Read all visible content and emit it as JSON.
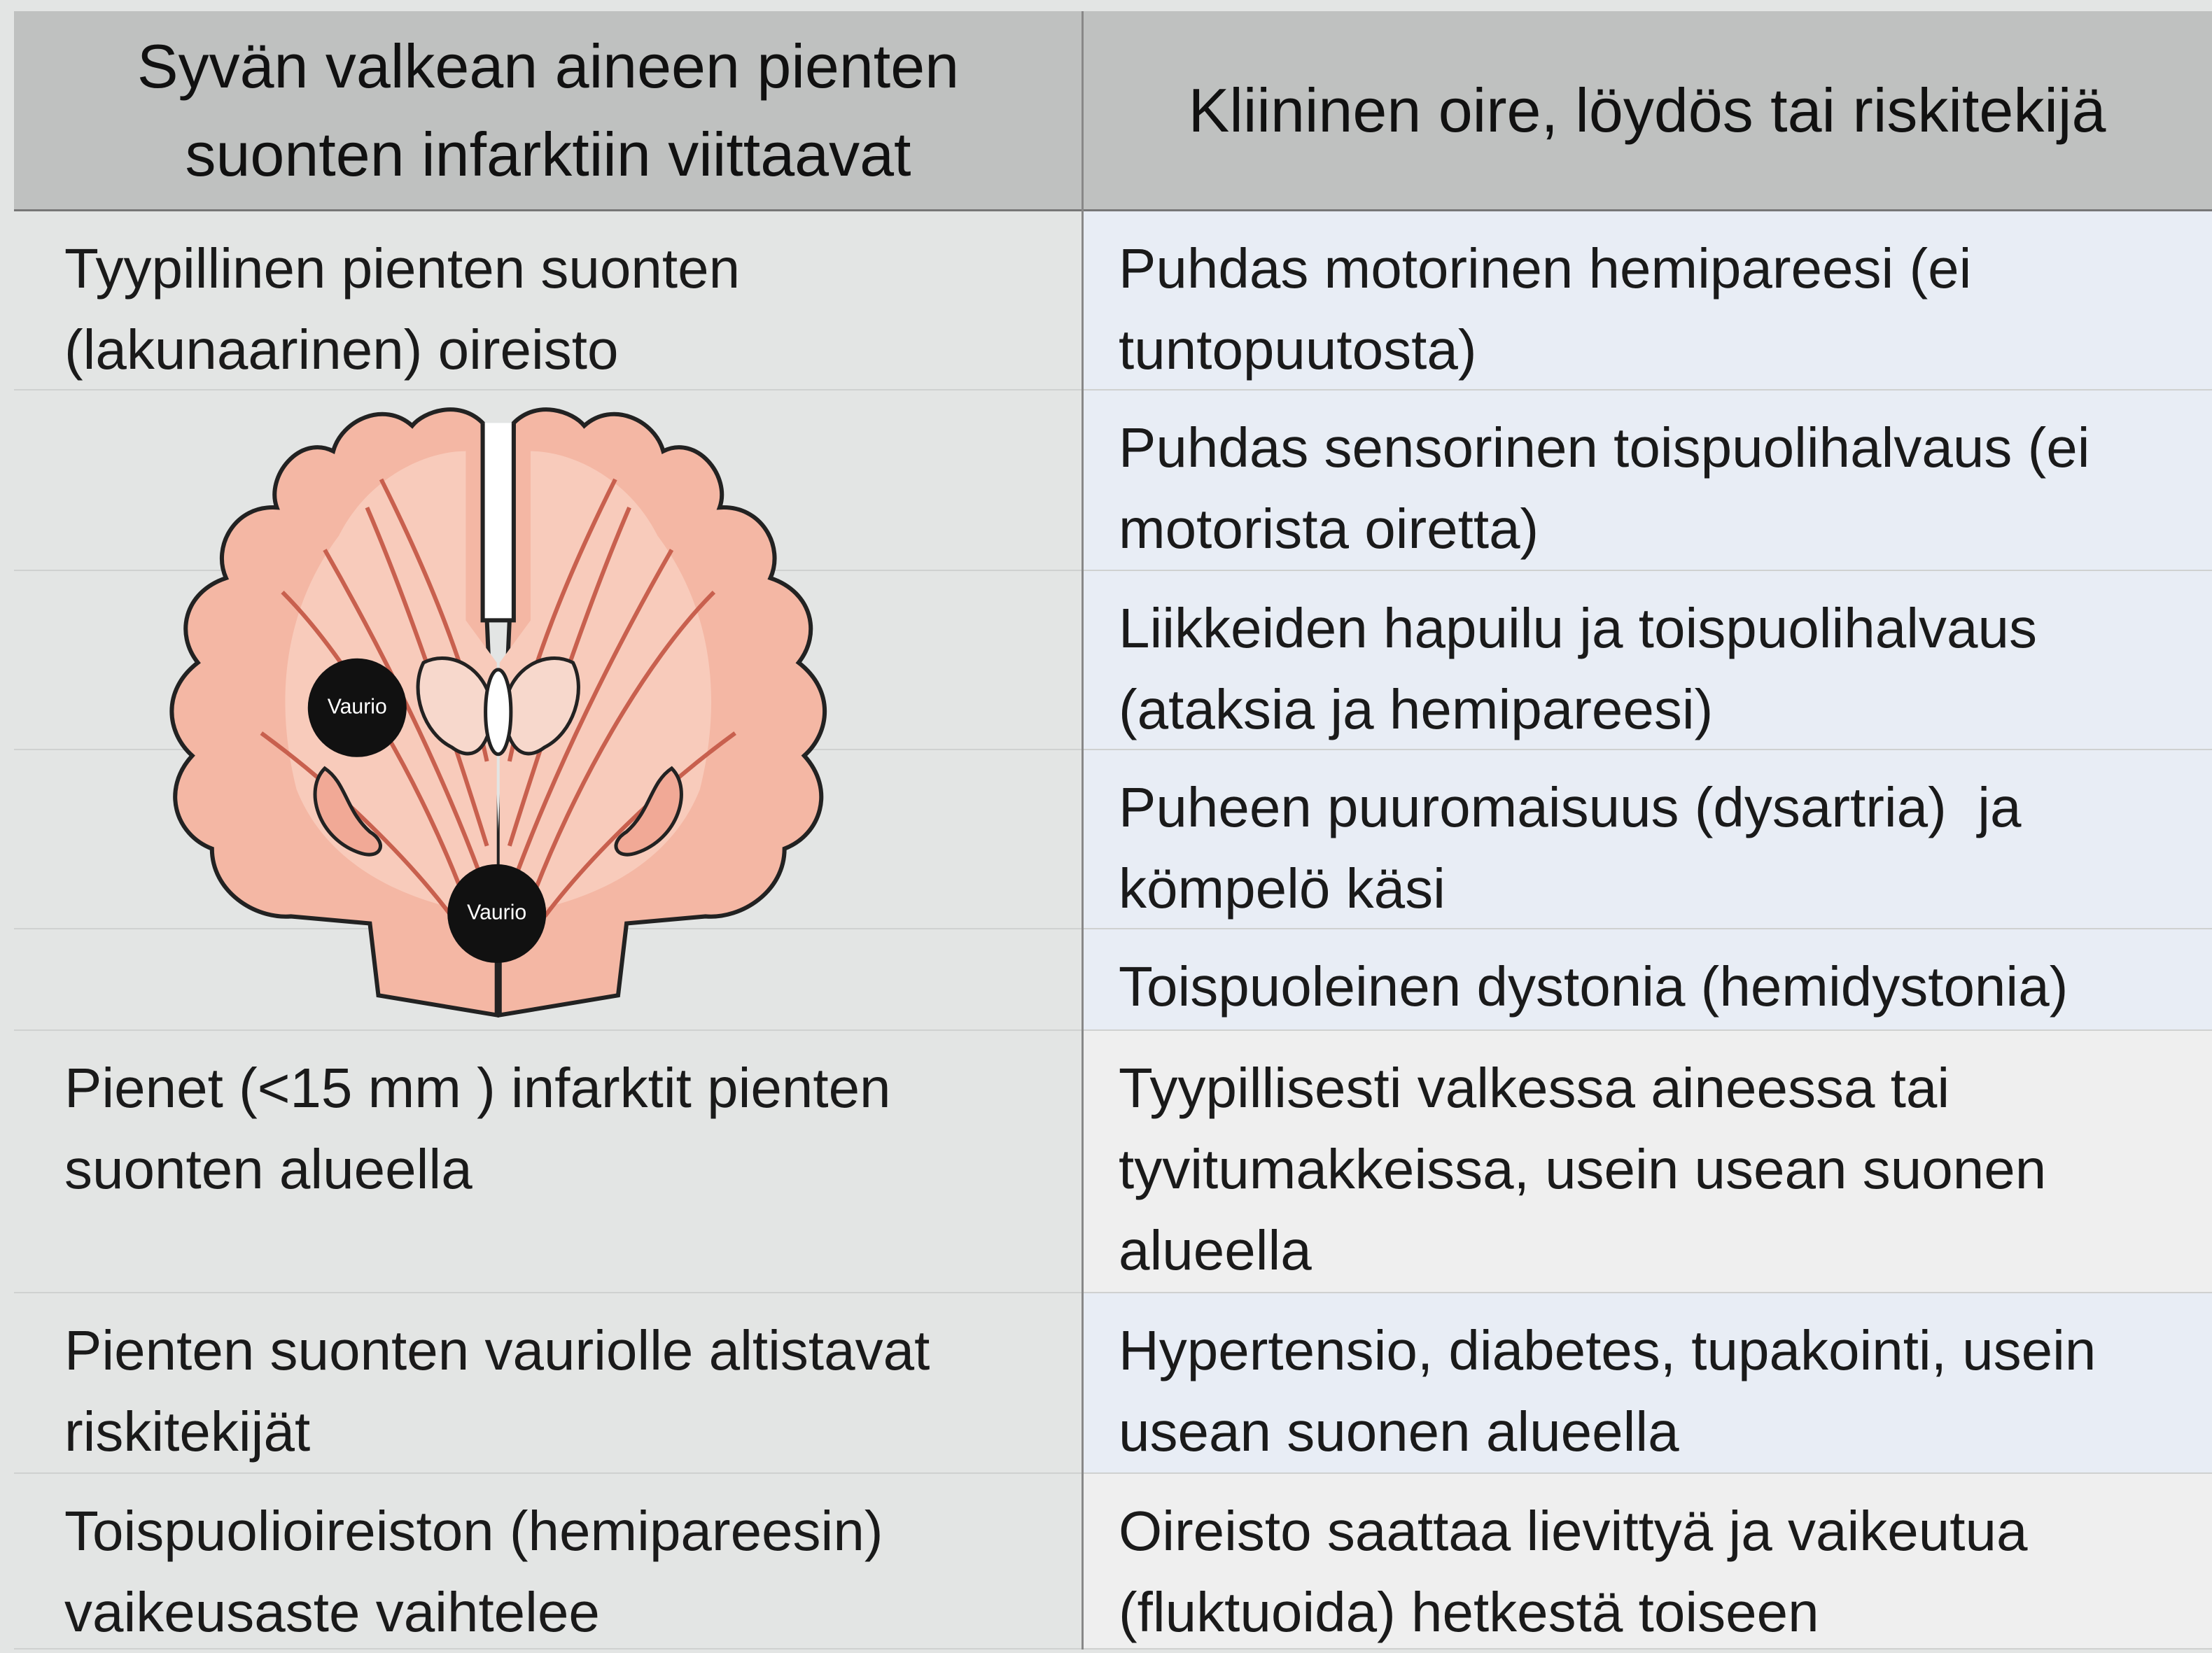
{
  "header": {
    "columns": [
      "Syvän valkean aineen pienten suonten infarktiin viittaavat",
      "Kliininen oire, löydös tai riskitekijä"
    ]
  },
  "rows": [
    {
      "left": "Tyypillinen pienten suonten (lakunaarinen) oireisto",
      "right": "Puhdas motorinen hemipareesi (ei tuntopuutosta)"
    },
    {
      "right": "Puhdas sensorinen toispuolihalvaus (ei motorista oiretta)"
    },
    {
      "right": "Liikkeiden hapuilu ja toispuolihalvaus (ataksia ja hemipareesi)"
    },
    {
      "right": "Puheen puuromaisuus (dysartria)  ja kömpelö käsi"
    },
    {
      "right": "Toispuoleinen dystonia (hemidystonia)"
    },
    {
      "left": "Pienet (<15 mm ) infarktit pienten suonten alueella",
      "right": "Tyypillisesti valkessa aineessa tai tyvitumakkeissa, usein usean suonen alueella"
    },
    {
      "left": "Pienten suonten vauriolle altistavat riskitekijät",
      "right": "Hypertensio, diabetes, tupakointi, usein usean suonen alueella"
    },
    {
      "left": "Toispuolioireiston (hemipareesin) vaikeusaste vaihtelee",
      "right": "Oireisto saattaa lievittyä ja vaikeutua (fluktuoida) hetkestä toiseen"
    }
  ],
  "figure": {
    "labels": [
      "Vaurio",
      "Vaurio"
    ]
  }
}
